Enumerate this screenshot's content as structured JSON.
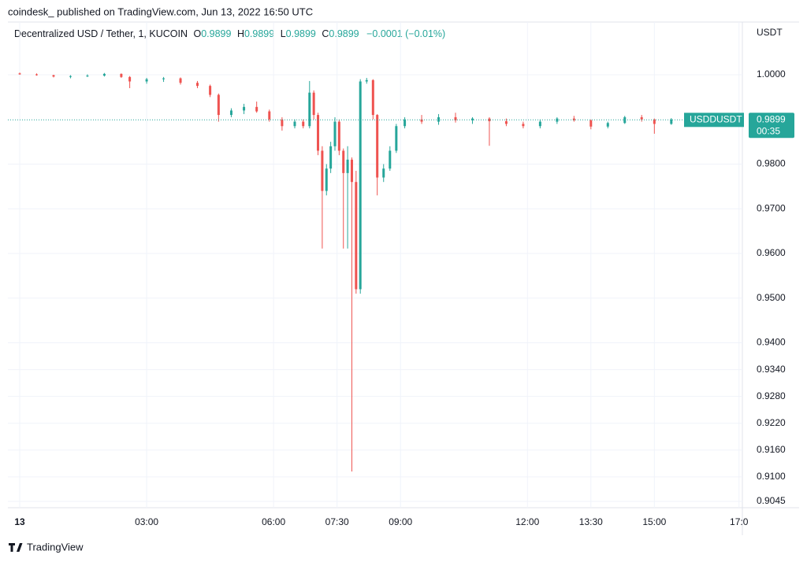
{
  "chart_data": {
    "type": "candlestick",
    "header": "coindesk_ published on TradingView.com, Jun 13, 2022 16:50 UTC",
    "title": "Decentralized USD / Tether, 1, KUCOIN",
    "legend": {
      "o_label": "O",
      "o": 0.9899,
      "h_label": "H",
      "h": 0.9899,
      "l_label": "L",
      "l": 0.9899,
      "c_label": "C",
      "c": 0.9899,
      "change": "−0.0001 (−0.01%)"
    },
    "y_unit": "USDT",
    "symbol": "USDDUSDT",
    "last_price": 0.9899,
    "countdown": "00:35",
    "footer": "TradingView",
    "up_color": "#26a69a",
    "down_color": "#ef5350",
    "grid": true,
    "xlim": [
      -0.28,
      17.08
    ],
    "xticks": [
      {
        "value": 0,
        "label": "13"
      },
      {
        "value": 3,
        "label": "03:00"
      },
      {
        "value": 6,
        "label": "06:00"
      },
      {
        "value": 7.5,
        "label": "07:30"
      },
      {
        "value": 9,
        "label": "09:00"
      },
      {
        "value": 12,
        "label": "12:00"
      },
      {
        "value": 13.5,
        "label": "13:30"
      },
      {
        "value": 15,
        "label": "15:00"
      },
      {
        "value": 17,
        "label": "17:0"
      }
    ],
    "ylim": [
      0.9031,
      1.0118
    ],
    "yticks": [
      {
        "value": 1.0,
        "label": "1.0000"
      },
      {
        "value": 0.98,
        "label": "0.9800"
      },
      {
        "value": 0.97,
        "label": "0.9700"
      },
      {
        "value": 0.96,
        "label": "0.9600"
      },
      {
        "value": 0.95,
        "label": "0.9500"
      },
      {
        "value": 0.94,
        "label": "0.9400"
      },
      {
        "value": 0.934,
        "label": "0.9340"
      },
      {
        "value": 0.928,
        "label": "0.9280"
      },
      {
        "value": 0.922,
        "label": "0.9220"
      },
      {
        "value": 0.916,
        "label": "0.9160"
      },
      {
        "value": 0.91,
        "label": "0.9100"
      },
      0.9045
    ],
    "x": [
      0.0,
      0.4,
      0.8,
      1.2,
      1.6,
      2.0,
      2.4,
      2.6,
      3.0,
      3.4,
      3.8,
      4.2,
      4.5,
      4.7,
      5.0,
      5.3,
      5.6,
      5.9,
      6.2,
      6.5,
      6.7,
      6.85,
      6.95,
      7.05,
      7.15,
      7.25,
      7.35,
      7.45,
      7.55,
      7.65,
      7.75,
      7.85,
      7.95,
      8.05,
      8.2,
      8.35,
      8.45,
      8.6,
      8.75,
      8.9,
      9.1,
      9.5,
      9.9,
      10.3,
      10.7,
      11.1,
      11.5,
      11.9,
      12.3,
      12.7,
      13.1,
      13.5,
      13.9,
      14.3,
      14.7,
      15.0,
      15.4,
      15.8,
      16.1
    ],
    "open": [
      1.0003,
      1.0001,
      0.9999,
      0.9996,
      0.9997,
      0.9998,
      1.0002,
      0.9995,
      0.9985,
      0.999,
      0.9992,
      0.9982,
      0.9975,
      0.9955,
      0.991,
      0.992,
      0.9928,
      0.9918,
      0.99,
      0.9885,
      0.9895,
      0.9885,
      0.996,
      0.991,
      0.983,
      0.974,
      0.979,
      0.984,
      0.9895,
      0.983,
      0.978,
      0.981,
      0.976,
      0.952,
      0.9985,
      0.9988,
      0.991,
      0.977,
      0.979,
      0.983,
      0.9885,
      0.99,
      0.9895,
      0.9905,
      0.9898,
      0.9902,
      0.9896,
      0.989,
      0.9885,
      0.9895,
      0.9902,
      0.9898,
      0.9884,
      0.9892,
      0.9905,
      0.99,
      0.989,
      0.99,
      0.9898
    ],
    "high": [
      1.0005,
      1.0003,
      1.0,
      0.9999,
      1.0001,
      1.0004,
      1.0003,
      0.9997,
      0.9993,
      0.9995,
      0.9994,
      0.9986,
      0.9978,
      0.9958,
      0.9925,
      0.9935,
      0.994,
      0.9922,
      0.9905,
      0.99,
      0.99,
      0.9986,
      0.9965,
      0.9915,
      0.984,
      0.98,
      0.985,
      0.9905,
      0.99,
      0.9835,
      0.984,
      0.9815,
      0.9785,
      0.999,
      0.9993,
      0.999,
      0.9912,
      0.98,
      0.984,
      0.989,
      0.9905,
      0.991,
      0.9912,
      0.9915,
      0.9905,
      0.9905,
      0.9902,
      0.9895,
      0.99,
      0.9905,
      0.9908,
      0.99,
      0.9895,
      0.9908,
      0.991,
      0.9902,
      0.9903,
      0.9904,
      0.9901
    ],
    "low": [
      1.0,
      0.9998,
      0.9994,
      0.9992,
      0.9995,
      0.9996,
      0.9993,
      0.997,
      0.998,
      0.9984,
      0.9978,
      0.997,
      0.995,
      0.9895,
      0.9905,
      0.9912,
      0.9915,
      0.9895,
      0.9875,
      0.988,
      0.988,
      0.988,
      0.99,
      0.982,
      0.9611,
      0.973,
      0.978,
      0.983,
      0.982,
      0.9611,
      0.9611,
      0.9112,
      0.951,
      0.951,
      0.998,
      0.99,
      0.973,
      0.976,
      0.9785,
      0.9825,
      0.988,
      0.989,
      0.9888,
      0.9893,
      0.989,
      0.9841,
      0.9885,
      0.988,
      0.988,
      0.989,
      0.9895,
      0.9878,
      0.988,
      0.989,
      0.9895,
      0.9868,
      0.9888,
      0.9895,
      0.9895
    ],
    "close": [
      1.0001,
      0.9999,
      0.9996,
      0.9997,
      0.9998,
      1.0002,
      0.9995,
      0.9985,
      0.999,
      0.9992,
      0.9982,
      0.9975,
      0.9955,
      0.991,
      0.992,
      0.9928,
      0.9918,
      0.99,
      0.9885,
      0.9895,
      0.9885,
      0.996,
      0.991,
      0.983,
      0.974,
      0.979,
      0.984,
      0.9895,
      0.983,
      0.978,
      0.981,
      0.976,
      0.952,
      0.9985,
      0.9988,
      0.991,
      0.977,
      0.979,
      0.983,
      0.9885,
      0.99,
      0.9895,
      0.9905,
      0.9898,
      0.9902,
      0.9896,
      0.989,
      0.9885,
      0.9895,
      0.9902,
      0.9898,
      0.9884,
      0.9892,
      0.9905,
      0.99,
      0.989,
      0.99,
      0.9898,
      0.9899
    ]
  }
}
